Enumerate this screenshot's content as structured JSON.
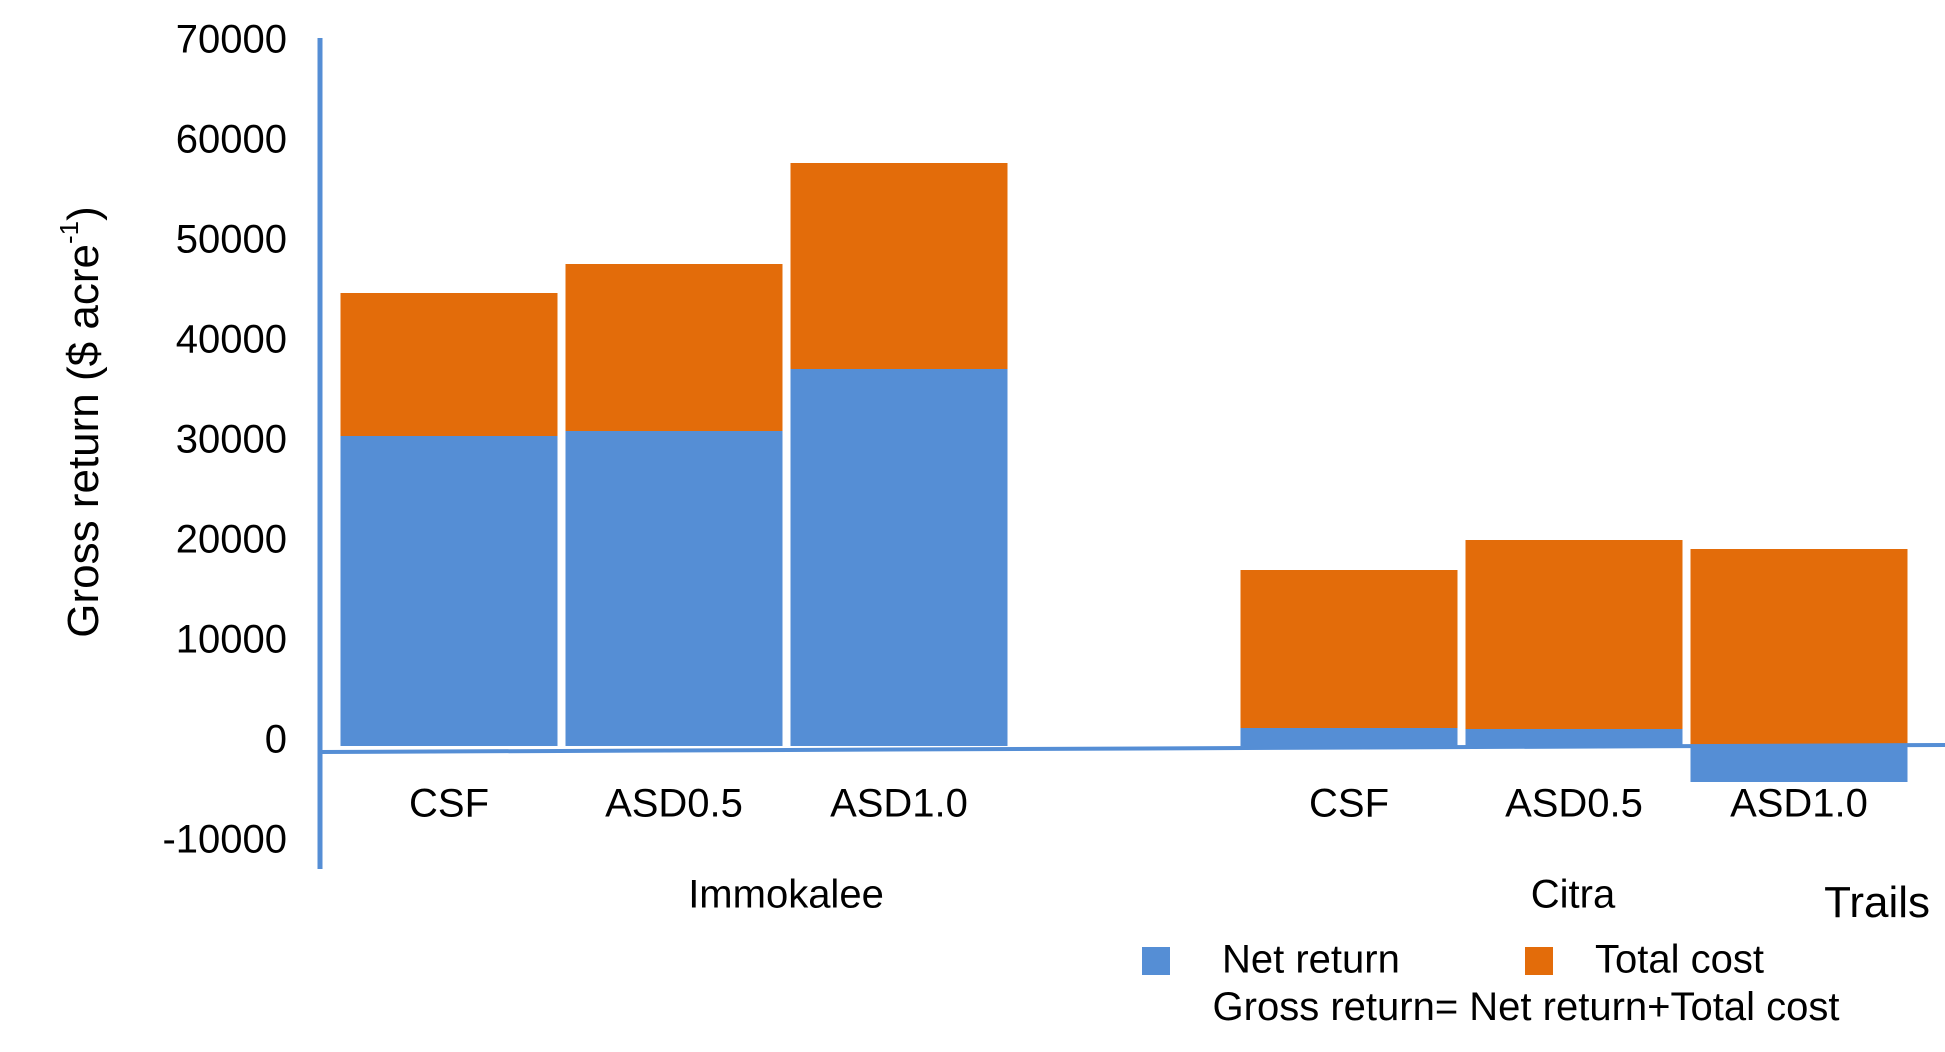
{
  "chart_data": {
    "type": "bar",
    "stacked": true,
    "groups": [
      {
        "name": "Immokalee",
        "categories": [
          "CSF",
          "ASD0.5",
          "ASD1.0"
        ]
      },
      {
        "name": "Citra",
        "categories": [
          "CSF",
          "ASD0.5",
          "ASD1.0"
        ]
      }
    ],
    "series": [
      {
        "name": "Net return",
        "color": "#558ED5",
        "values": [
          31000,
          31500,
          37700,
          1800,
          1700,
          -3600
        ]
      },
      {
        "name": "Total cost",
        "color": "#E36C0A",
        "values": [
          14300,
          16700,
          20600,
          15800,
          18900,
          19700
        ]
      }
    ],
    "ylabel_main": "Gross return ($ acre",
    "ylabel_sup": "-1",
    "ylabel_close": ")",
    "xlabel": "Trails",
    "yticks": [
      "70000",
      "60000",
      "50000",
      "40000",
      "30000",
      "20000",
      "10000",
      "0",
      "-10000"
    ],
    "ylim": [
      -10000,
      70000
    ],
    "legend_position": "bottom",
    "note": "Gross return= Net return+Total cost",
    "axis_color": "#558ED5",
    "grid": false
  }
}
